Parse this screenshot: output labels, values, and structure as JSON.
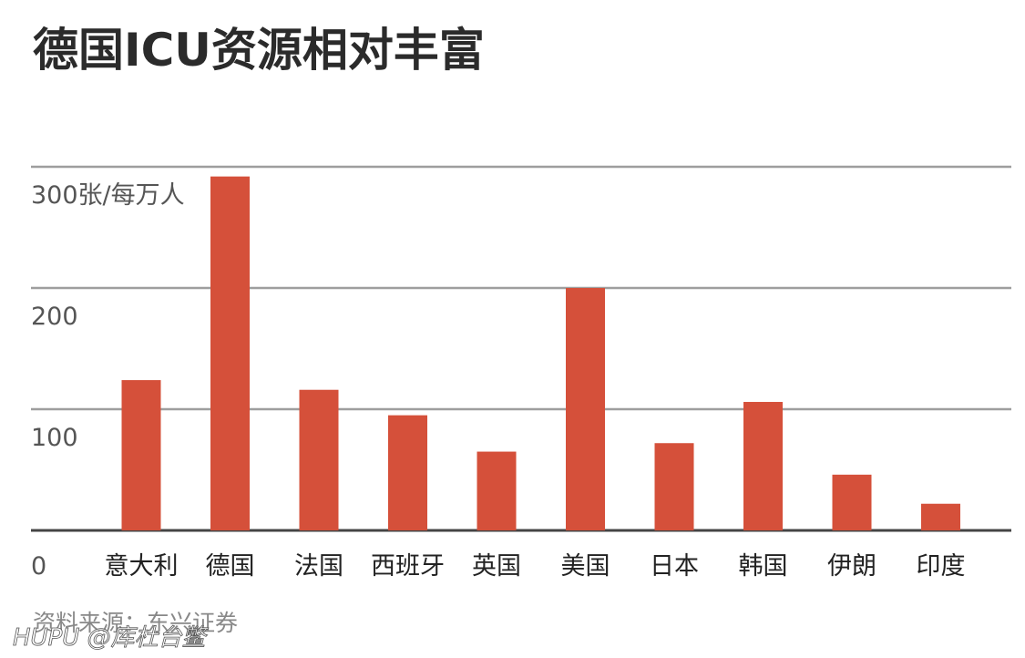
{
  "chart_data": {
    "type": "bar",
    "title": "德国ICU资源相对丰富",
    "unit_label": "300张/每万人",
    "yticks": [
      {
        "value": 300,
        "label": "300张/每万人"
      },
      {
        "value": 200,
        "label": "200"
      },
      {
        "value": 100,
        "label": "100"
      },
      {
        "value": 0,
        "label": "0"
      }
    ],
    "ylim": [
      0,
      300
    ],
    "grid": true,
    "categories": [
      "意大利",
      "德国",
      "法国",
      "西班牙",
      "英国",
      "美国",
      "日本",
      "韩国",
      "伊朗",
      "印度"
    ],
    "values": [
      124,
      292,
      116,
      95,
      65,
      200,
      72,
      106,
      46,
      22
    ],
    "bar_color": "#d5503a",
    "grid_color": "#9e9e9e",
    "axis_color": "#444444",
    "source": "资料来源：东兴证券"
  },
  "watermark": "HUPU @库杜台鳖"
}
